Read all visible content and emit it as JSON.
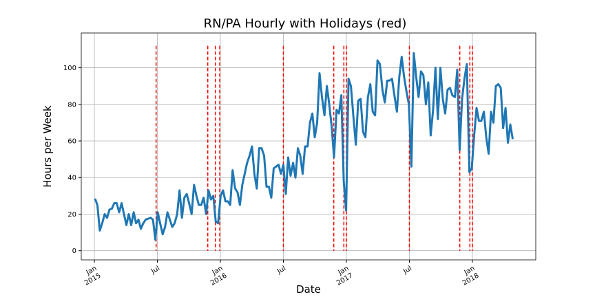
{
  "chart_data": {
    "type": "line",
    "title": "RN/PA Hourly with Holidays (red)",
    "x_label": "Date",
    "y_label": "Hours per Week",
    "xlim": [
      2014.896,
      2018.503
    ],
    "xticks": [
      {
        "value": 2015,
        "label": "Jan\n2015"
      },
      {
        "value": 2015.5,
        "label": "Jul"
      },
      {
        "value": 2016,
        "label": "Jan\n2016"
      },
      {
        "value": 2016.5,
        "label": "Jul"
      },
      {
        "value": 2017,
        "label": "Jan\n2017"
      },
      {
        "value": 2017.5,
        "label": "Jul"
      },
      {
        "value": 2018,
        "label": "Jan\n2018"
      }
    ],
    "ylim": [
      -5,
      119
    ],
    "yticks": [
      0,
      20,
      40,
      60,
      80,
      100
    ],
    "grid": true,
    "x": [
      2015.005,
      2015.024,
      2015.043,
      2015.062,
      2015.082,
      2015.101,
      2015.12,
      2015.139,
      2015.158,
      2015.177,
      2015.197,
      2015.216,
      2015.235,
      2015.254,
      2015.273,
      2015.292,
      2015.312,
      2015.331,
      2015.35,
      2015.369,
      2015.388,
      2015.407,
      2015.427,
      2015.446,
      2015.465,
      2015.484,
      2015.503,
      2015.522,
      2015.542,
      2015.561,
      2015.58,
      2015.599,
      2015.618,
      2015.637,
      2015.657,
      2015.676,
      2015.695,
      2015.714,
      2015.733,
      2015.752,
      2015.772,
      2015.791,
      2015.81,
      2015.829,
      2015.848,
      2015.867,
      2015.887,
      2015.906,
      2015.925,
      2015.944,
      2015.963,
      2015.982,
      2016.002,
      2016.021,
      2016.04,
      2016.059,
      2016.078,
      2016.097,
      2016.117,
      2016.136,
      2016.155,
      2016.174,
      2016.193,
      2016.212,
      2016.232,
      2016.251,
      2016.27,
      2016.289,
      2016.308,
      2016.327,
      2016.347,
      2016.366,
      2016.385,
      2016.404,
      2016.423,
      2016.442,
      2016.462,
      2016.481,
      2016.5,
      2016.519,
      2016.538,
      2016.557,
      2016.577,
      2016.596,
      2016.615,
      2016.634,
      2016.653,
      2016.672,
      2016.692,
      2016.711,
      2016.73,
      2016.749,
      2016.768,
      2016.787,
      2016.806,
      2016.826,
      2016.845,
      2016.864,
      2016.883,
      2016.902,
      2016.922,
      2016.941,
      2016.96,
      2016.979,
      2016.998,
      2017.017,
      2017.036,
      2017.056,
      2017.075,
      2017.094,
      2017.113,
      2017.132,
      2017.151,
      2017.171,
      2017.19,
      2017.209,
      2017.228,
      2017.247,
      2017.266,
      2017.286,
      2017.305,
      2017.324,
      2017.343,
      2017.362,
      2017.381,
      2017.401,
      2017.42,
      2017.439,
      2017.458,
      2017.477,
      2017.496,
      2017.516,
      2017.535,
      2017.554,
      2017.573,
      2017.592,
      2017.611,
      2017.631,
      2017.65,
      2017.669,
      2017.688,
      2017.707,
      2017.726,
      2017.746,
      2017.765,
      2017.784,
      2017.803,
      2017.822,
      2017.841,
      2017.861,
      2017.88,
      2017.899,
      2017.918,
      2017.937,
      2017.956,
      2017.976,
      2017.995,
      2018.014,
      2018.033,
      2018.052,
      2018.071,
      2018.091,
      2018.11,
      2018.129,
      2018.148,
      2018.167,
      2018.186,
      2018.206,
      2018.225,
      2018.244,
      2018.263,
      2018.282,
      2018.301,
      2018.32
    ],
    "series": [
      {
        "color": "#1f77b4",
        "values": [
          28.5,
          25,
          11,
          15,
          20,
          18,
          22.5,
          23,
          26,
          26,
          21,
          26,
          20,
          14,
          20,
          14,
          21,
          15,
          17,
          12,
          15,
          17,
          17.5,
          18,
          17,
          6,
          21,
          15,
          9,
          13,
          21,
          17,
          13,
          15,
          20,
          33,
          18,
          29,
          31,
          26,
          20,
          36,
          30,
          25,
          25,
          29,
          20,
          33,
          28,
          30,
          16,
          15,
          30,
          33,
          27,
          27,
          25,
          44,
          34,
          32,
          25,
          36,
          42,
          48,
          52,
          57,
          42,
          34,
          56,
          56,
          52,
          35,
          35,
          29,
          45,
          46,
          47,
          42,
          47,
          31,
          51,
          41,
          48,
          40,
          56,
          52,
          42,
          57,
          57,
          70,
          75,
          62,
          70,
          97,
          84,
          74,
          90,
          80,
          68,
          51,
          77,
          75,
          85,
          38,
          22,
          94,
          90,
          73,
          58,
          82,
          83,
          65,
          62,
          84,
          91,
          76,
          74,
          104,
          102,
          88,
          81,
          93,
          93,
          94,
          85,
          76,
          95,
          106,
          95,
          87,
          80,
          46,
          108,
          95,
          84,
          98,
          96,
          80,
          92,
          63,
          77,
          100,
          72,
          100,
          83,
          75,
          88,
          89,
          85,
          84,
          99,
          55,
          83,
          94,
          102,
          43,
          45,
          63,
          78,
          71,
          71,
          76,
          62,
          53,
          76,
          70,
          90,
          91,
          89,
          67,
          78,
          59,
          69,
          61
        ]
      }
    ],
    "holidays": {
      "color": "red",
      "x": [
        2015.49,
        2015.9,
        2015.96,
        2015.995,
        2016.5,
        2016.9,
        2016.98,
        2017.0,
        2017.5,
        2017.9,
        2017.98,
        2018.0
      ]
    }
  }
}
